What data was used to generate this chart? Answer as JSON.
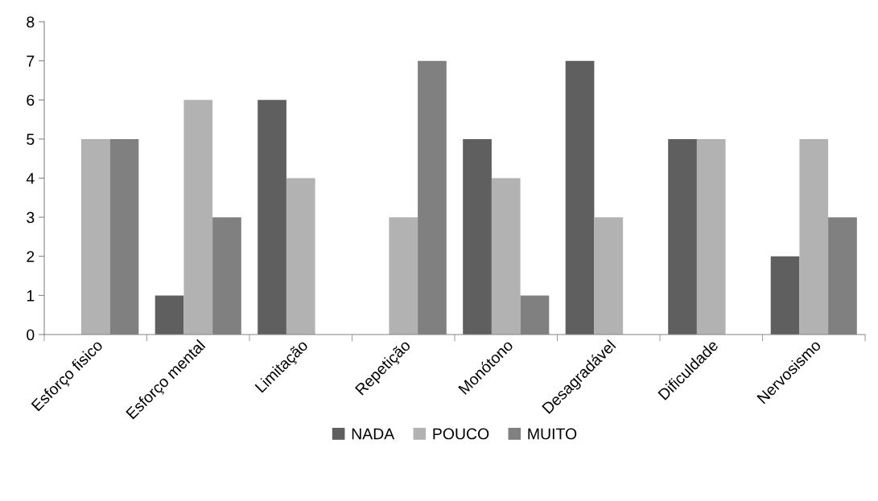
{
  "chart_data": {
    "type": "bar",
    "categories": [
      "Esforço fisico",
      "Esforço mental",
      "Limitação",
      "Repetição",
      "Monótono",
      "Desagradável",
      "Dificuldade",
      "Nervosismo"
    ],
    "series": [
      {
        "name": "NADA",
        "color": "#5f5f5f",
        "values": [
          0,
          1,
          6,
          0,
          5,
          7,
          5,
          2
        ]
      },
      {
        "name": "POUCO",
        "color": "#b2b2b2",
        "values": [
          5,
          6,
          4,
          3,
          4,
          3,
          5,
          5
        ]
      },
      {
        "name": "MUITO",
        "color": "#808080",
        "values": [
          5,
          3,
          0,
          7,
          1,
          0,
          0,
          3
        ]
      }
    ],
    "ylim": [
      0,
      8
    ],
    "yticks": [
      0,
      1,
      2,
      3,
      4,
      5,
      6,
      7,
      8
    ],
    "grid": false,
    "legend": "bottom"
  }
}
